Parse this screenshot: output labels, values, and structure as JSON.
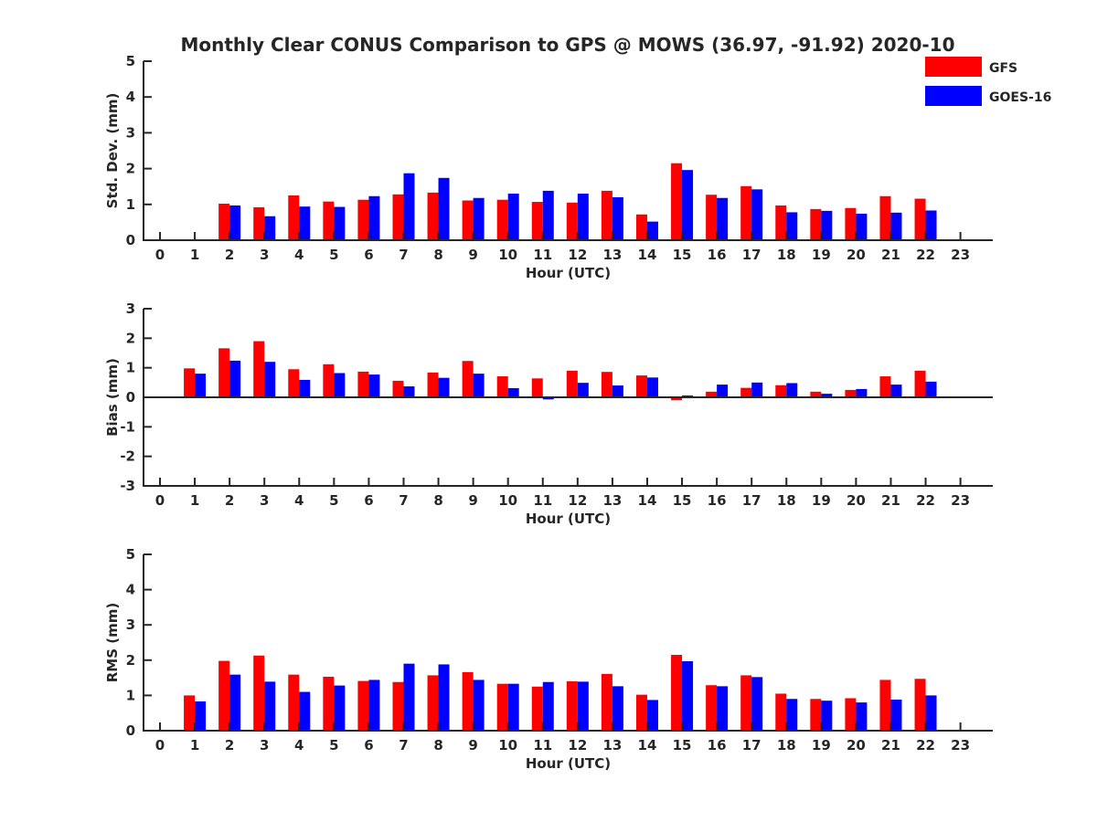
{
  "figure": {
    "title": "Monthly Clear CONUS Comparison to GPS @ MOWS (36.97, -91.92) 2020-10"
  },
  "legend": [
    {
      "name": "GFS",
      "color": "#ff0000"
    },
    {
      "name": "GOES-16",
      "color": "#0000ff"
    }
  ],
  "chart_data": [
    {
      "type": "bar",
      "title": "Monthly Clear CONUS Comparison to GPS @ MOWS (36.97, -91.92) 2020-10",
      "xlabel": "Hour (UTC)",
      "ylabel": "Std. Dev. (mm)",
      "ylim": [
        0,
        5
      ],
      "yticks": [
        "0",
        "1",
        "2",
        "3",
        "4",
        "5"
      ],
      "categories": [
        "0",
        "1",
        "2",
        "3",
        "4",
        "5",
        "6",
        "7",
        "8",
        "9",
        "10",
        "11",
        "12",
        "13",
        "14",
        "15",
        "16",
        "17",
        "18",
        "19",
        "20",
        "21",
        "22",
        "23"
      ],
      "grid": false,
      "legend_position": "top-right",
      "series": [
        {
          "name": "GFS",
          "color": "#ff0000",
          "values": [
            null,
            null,
            1.02,
            0.92,
            1.25,
            1.08,
            1.13,
            1.28,
            1.33,
            1.11,
            1.13,
            1.07,
            1.05,
            1.38,
            0.72,
            2.15,
            1.27,
            1.51,
            0.97,
            0.87,
            0.9,
            1.23,
            1.16,
            null
          ]
        },
        {
          "name": "GOES-16",
          "color": "#0000ff",
          "values": [
            null,
            null,
            0.97,
            0.67,
            0.94,
            0.93,
            1.23,
            1.87,
            1.74,
            1.18,
            1.3,
            1.38,
            1.3,
            1.2,
            0.52,
            1.96,
            1.18,
            1.42,
            0.78,
            0.82,
            0.74,
            0.77,
            0.83,
            null
          ]
        }
      ]
    },
    {
      "type": "bar",
      "xlabel": "Hour (UTC)",
      "ylabel": "Bias (mm)",
      "ylim": [
        -3,
        3
      ],
      "yticks": [
        "-3",
        "-2",
        "-1",
        "0",
        "1",
        "2",
        "3"
      ],
      "categories": [
        "0",
        "1",
        "2",
        "3",
        "4",
        "5",
        "6",
        "7",
        "8",
        "9",
        "10",
        "11",
        "12",
        "13",
        "14",
        "15",
        "16",
        "17",
        "18",
        "19",
        "20",
        "21",
        "22",
        "23"
      ],
      "grid": false,
      "zero_line": true,
      "series": [
        {
          "name": "GFS",
          "color": "#ff0000",
          "values": [
            null,
            0.98,
            1.66,
            1.9,
            0.95,
            1.12,
            0.87,
            0.56,
            0.84,
            1.23,
            0.71,
            0.64,
            0.9,
            0.86,
            0.74,
            -0.1,
            0.19,
            0.32,
            0.41,
            0.19,
            0.25,
            0.71,
            0.9,
            null
          ]
        },
        {
          "name": "GOES-16",
          "color": "#0000ff",
          "values": [
            null,
            0.8,
            1.24,
            1.2,
            0.59,
            0.82,
            0.77,
            0.37,
            0.66,
            0.8,
            0.31,
            -0.07,
            0.49,
            0.4,
            0.67,
            0.06,
            0.43,
            0.5,
            0.48,
            0.12,
            0.28,
            0.43,
            0.53,
            null
          ]
        }
      ]
    },
    {
      "type": "bar",
      "xlabel": "Hour (UTC)",
      "ylabel": "RMS (mm)",
      "ylim": [
        0,
        5
      ],
      "yticks": [
        "0",
        "1",
        "2",
        "3",
        "4",
        "5"
      ],
      "categories": [
        "0",
        "1",
        "2",
        "3",
        "4",
        "5",
        "6",
        "7",
        "8",
        "9",
        "10",
        "11",
        "12",
        "13",
        "14",
        "15",
        "16",
        "17",
        "18",
        "19",
        "20",
        "21",
        "22",
        "23"
      ],
      "grid": false,
      "series": [
        {
          "name": "GFS",
          "color": "#ff0000",
          "values": [
            null,
            1.0,
            1.98,
            2.13,
            1.59,
            1.53,
            1.41,
            1.38,
            1.57,
            1.66,
            1.33,
            1.25,
            1.4,
            1.61,
            1.02,
            2.15,
            1.29,
            1.57,
            1.05,
            0.9,
            0.92,
            1.44,
            1.47,
            null
          ]
        },
        {
          "name": "GOES-16",
          "color": "#0000ff",
          "values": [
            null,
            0.83,
            1.59,
            1.39,
            1.1,
            1.28,
            1.44,
            1.9,
            1.88,
            1.44,
            1.33,
            1.38,
            1.39,
            1.26,
            0.87,
            1.97,
            1.26,
            1.52,
            0.9,
            0.85,
            0.8,
            0.88,
            1.0,
            null
          ]
        }
      ]
    }
  ]
}
